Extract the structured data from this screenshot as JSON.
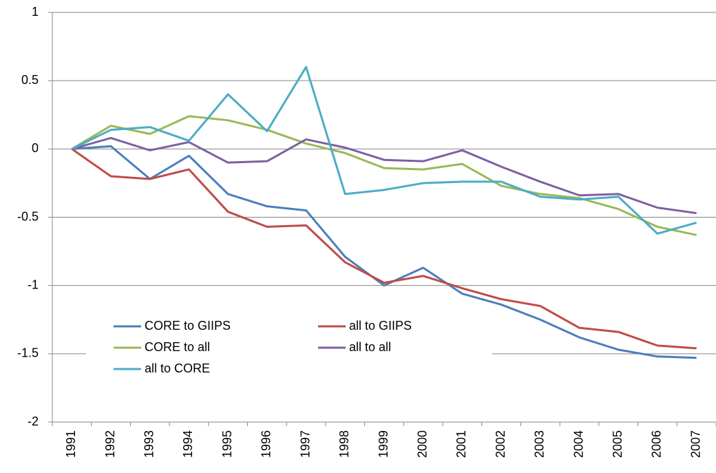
{
  "chart_data": {
    "type": "line",
    "categories": [
      "1991",
      "1992",
      "1993",
      "1994",
      "1995",
      "1996",
      "1997",
      "1998",
      "1999",
      "2000",
      "2001",
      "2002",
      "2003",
      "2004",
      "2005",
      "2006",
      "2007"
    ],
    "series": [
      {
        "name": "CORE to GIIPS",
        "color": "#4a7ebb",
        "values": [
          0,
          0.02,
          -0.22,
          -0.05,
          -0.33,
          -0.42,
          -0.45,
          -0.79,
          -1.0,
          -0.87,
          -1.06,
          -1.14,
          -1.25,
          -1.38,
          -1.47,
          -1.52,
          -1.53
        ]
      },
      {
        "name": "all to GIIPS",
        "color": "#be4b48",
        "values": [
          0,
          -0.2,
          -0.22,
          -0.15,
          -0.46,
          -0.57,
          -0.56,
          -0.83,
          -0.98,
          -0.93,
          -1.02,
          -1.1,
          -1.15,
          -1.31,
          -1.34,
          -1.44,
          -1.46
        ]
      },
      {
        "name": "CORE to all",
        "color": "#98b954",
        "values": [
          0,
          0.17,
          0.11,
          0.24,
          0.21,
          0.14,
          0.04,
          -0.03,
          -0.14,
          -0.15,
          -0.11,
          -0.27,
          -0.33,
          -0.36,
          -0.44,
          -0.57,
          -0.63
        ]
      },
      {
        "name": "all to all",
        "color": "#7d60a0",
        "values": [
          0,
          0.08,
          -0.01,
          0.05,
          -0.1,
          -0.09,
          0.07,
          0.01,
          -0.08,
          -0.09,
          -0.01,
          -0.13,
          -0.24,
          -0.34,
          -0.33,
          -0.43,
          -0.47
        ]
      },
      {
        "name": "all to CORE",
        "color": "#4bacc6",
        "values": [
          0,
          0.14,
          0.16,
          0.06,
          0.4,
          0.13,
          0.6,
          -0.33,
          -0.3,
          -0.25,
          -0.24,
          -0.24,
          -0.35,
          -0.37,
          -0.35,
          -0.62,
          -0.54
        ]
      }
    ],
    "ylim": [
      -2,
      1
    ],
    "yticks": [
      -2,
      -1.5,
      -1,
      -0.5,
      0,
      0.5,
      1
    ],
    "grid": true,
    "legend": "inside-lower-left"
  }
}
